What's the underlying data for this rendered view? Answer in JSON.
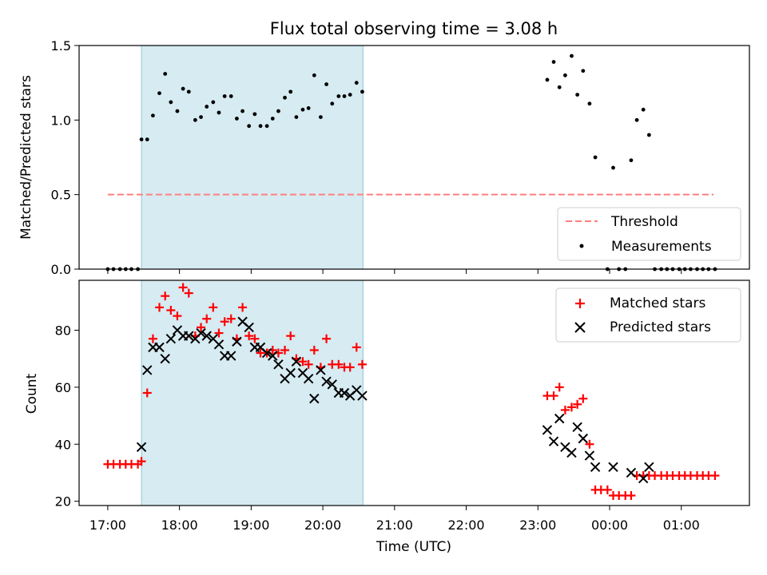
{
  "chart_data": [
    {
      "type": "scatter",
      "title": "Flux total observing time = 3.08 h",
      "xlabel": "",
      "ylabel": "Matched/Predicted stars",
      "ylim": [
        0,
        1.5
      ],
      "yticks": [
        "0.0",
        "0.5",
        "1.0",
        "1.5"
      ],
      "xlim_hours": [
        16.6,
        25.95
      ],
      "shaded_span_hours": [
        17.47,
        20.56
      ],
      "legend_position": "lower-right",
      "threshold": {
        "name": "Threshold",
        "value": 0.5,
        "x_hours": [
          17.0,
          25.45
        ],
        "color": "#ff7f7f"
      },
      "series": [
        {
          "name": "Measurements",
          "color": "#000000",
          "x_hours": [
            17.0,
            17.08,
            17.17,
            17.25,
            17.33,
            17.42,
            17.47,
            17.55,
            17.63,
            17.72,
            17.8,
            17.88,
            17.97,
            18.05,
            18.13,
            18.22,
            18.3,
            18.38,
            18.47,
            18.55,
            18.63,
            18.72,
            18.8,
            18.88,
            18.97,
            19.05,
            19.13,
            19.22,
            19.3,
            19.38,
            19.47,
            19.55,
            19.63,
            19.72,
            19.8,
            19.88,
            19.97,
            20.05,
            20.13,
            20.22,
            20.3,
            20.38,
            20.47,
            20.55,
            23.13,
            23.22,
            23.3,
            23.38,
            23.47,
            23.55,
            23.63,
            23.72,
            23.8,
            23.97,
            24.05,
            24.13,
            24.22,
            24.3,
            24.38,
            24.47,
            24.55,
            24.63,
            24.72,
            24.8,
            24.88,
            24.97,
            25.05,
            25.13,
            25.22,
            25.3,
            25.38,
            25.47
          ],
          "y": [
            0,
            0,
            0,
            0,
            0,
            0,
            0.87,
            0.87,
            1.03,
            1.18,
            1.31,
            1.12,
            1.06,
            1.21,
            1.19,
            1.0,
            1.02,
            1.09,
            1.12,
            1.05,
            1.16,
            1.16,
            1.01,
            1.06,
            0.96,
            1.04,
            0.96,
            0.96,
            1.01,
            1.06,
            1.15,
            1.19,
            1.02,
            1.07,
            1.08,
            1.3,
            1.02,
            1.24,
            1.11,
            1.16,
            1.16,
            1.17,
            1.25,
            1.19,
            1.27,
            1.39,
            1.22,
            1.3,
            1.43,
            1.17,
            1.33,
            1.11,
            0.75,
            0,
            0.68,
            0,
            0,
            0.73,
            1.0,
            1.07,
            0.9,
            0,
            0,
            0,
            0,
            0,
            0,
            0,
            0,
            0,
            0,
            0
          ]
        }
      ]
    },
    {
      "type": "scatter",
      "title": "",
      "xlabel": "Time (UTC)",
      "ylabel": "Count",
      "ylim": [
        18.5,
        97.5
      ],
      "yticks": [
        "20",
        "40",
        "60",
        "80"
      ],
      "xlim_hours": [
        16.6,
        25.95
      ],
      "xticks": [
        {
          "h": 17,
          "label": "17:00"
        },
        {
          "h": 18,
          "label": "18:00"
        },
        {
          "h": 19,
          "label": "19:00"
        },
        {
          "h": 20,
          "label": "20:00"
        },
        {
          "h": 21,
          "label": "21:00"
        },
        {
          "h": 22,
          "label": "22:00"
        },
        {
          "h": 23,
          "label": "23:00"
        },
        {
          "h": 24,
          "label": "00:00"
        },
        {
          "h": 25,
          "label": "01:00"
        }
      ],
      "shaded_span_hours": [
        17.47,
        20.56
      ],
      "legend_position": "upper-right",
      "series": [
        {
          "name": "Matched stars",
          "marker": "plus",
          "color": "#ff0000",
          "x_hours": [
            17.0,
            17.08,
            17.17,
            17.25,
            17.33,
            17.42,
            17.47,
            17.55,
            17.63,
            17.72,
            17.8,
            17.88,
            17.97,
            18.05,
            18.13,
            18.22,
            18.3,
            18.38,
            18.47,
            18.55,
            18.63,
            18.72,
            18.8,
            18.88,
            18.97,
            19.05,
            19.13,
            19.22,
            19.3,
            19.38,
            19.47,
            19.55,
            19.63,
            19.72,
            19.8,
            19.88,
            19.97,
            20.05,
            20.13,
            20.22,
            20.3,
            20.38,
            20.47,
            20.55,
            23.13,
            23.22,
            23.3,
            23.38,
            23.47,
            23.55,
            23.63,
            23.72,
            23.8,
            23.88,
            23.97,
            24.05,
            24.13,
            24.22,
            24.3,
            24.38,
            24.47,
            24.55,
            24.63,
            24.72,
            24.8,
            24.88,
            24.97,
            25.05,
            25.13,
            25.22,
            25.3,
            25.38,
            25.47
          ],
          "y": [
            33,
            33,
            33,
            33,
            33,
            33,
            34,
            58,
            77,
            88,
            92,
            87,
            85,
            95,
            93,
            78,
            81,
            84,
            88,
            79,
            83,
            84,
            77,
            88,
            78,
            77,
            72,
            72,
            73,
            72,
            73,
            78,
            70,
            69,
            68,
            73,
            67,
            77,
            68,
            68,
            67,
            67,
            74,
            68,
            57,
            57,
            60,
            52,
            53,
            54,
            56,
            40,
            24,
            24,
            24,
            22,
            22,
            22,
            22,
            29,
            29,
            29,
            29,
            29,
            29,
            29,
            29,
            29,
            29,
            29,
            29,
            29,
            29
          ]
        },
        {
          "name": "Predicted stars",
          "marker": "x",
          "color": "#000000",
          "x_hours": [
            17.47,
            17.55,
            17.63,
            17.72,
            17.8,
            17.88,
            17.97,
            18.05,
            18.13,
            18.22,
            18.3,
            18.38,
            18.47,
            18.55,
            18.63,
            18.72,
            18.8,
            18.88,
            18.97,
            19.05,
            19.13,
            19.22,
            19.3,
            19.38,
            19.47,
            19.55,
            19.63,
            19.72,
            19.8,
            19.88,
            19.97,
            20.05,
            20.13,
            20.22,
            20.3,
            20.38,
            20.47,
            20.55,
            23.13,
            23.22,
            23.3,
            23.38,
            23.47,
            23.55,
            23.63,
            23.72,
            23.8,
            24.05,
            24.3,
            24.47,
            24.55
          ],
          "y": [
            39,
            66,
            74,
            74,
            70,
            77,
            80,
            78,
            78,
            77,
            79,
            78,
            77,
            75,
            71,
            71,
            76,
            83,
            81,
            74,
            74,
            72,
            71,
            68,
            63,
            65,
            69,
            65,
            63,
            56,
            66,
            62,
            61,
            58,
            58,
            57,
            59,
            57,
            45,
            41,
            49,
            39,
            37,
            46,
            42,
            36,
            32,
            32,
            30,
            28,
            32
          ]
        }
      ]
    }
  ]
}
